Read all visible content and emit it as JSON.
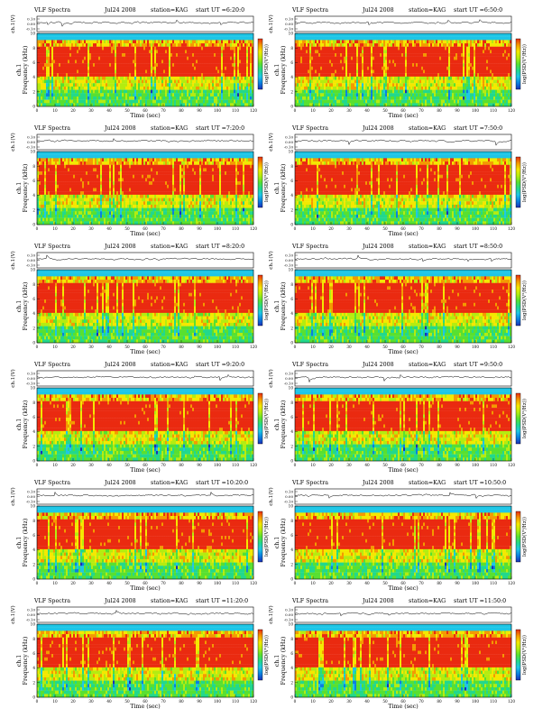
{
  "labels": {
    "spectra": "VLF Spectra",
    "ch1v": "ch.1(V)",
    "freq_ch": "ch.1",
    "freq_units": "Frequency (kHz)",
    "time": "Time (sec)",
    "cbar": "log(PSD(V²/Hz))"
  },
  "colors": {
    "colormap": [
      "#1b2fb8",
      "#0a7fe0",
      "#1ec6e6",
      "#22d88c",
      "#58e030",
      "#b4ec10",
      "#f4e800",
      "#f49a00",
      "#ea2a10"
    ],
    "frame": "#000000",
    "waveform": "#000000"
  },
  "chart_data": [
    {
      "type": "heatmap",
      "date": "Jul24 2008",
      "station": "station=KAG",
      "start": "start UT =6:20:0",
      "waveform_ticks": [
        "0.10",
        "0.00",
        "-0.10"
      ],
      "y_ticks": [
        "0",
        "2",
        "4",
        "6",
        "8",
        "10"
      ],
      "x_ticks": [
        "0",
        "10",
        "20",
        "30",
        "40",
        "50",
        "60",
        "70",
        "80",
        "90",
        "100",
        "110",
        "120"
      ],
      "xlim": [
        0,
        120
      ],
      "ylim": [
        0,
        10
      ]
    },
    {
      "type": "heatmap",
      "date": "Jul24 2008",
      "station": "station=KAG",
      "start": "start UT =6:50:0",
      "waveform_ticks": [
        "0.10",
        "0.00",
        "-0.10"
      ],
      "y_ticks": [
        "0",
        "2",
        "4",
        "6",
        "8",
        "10"
      ],
      "x_ticks": [
        "0",
        "10",
        "20",
        "30",
        "40",
        "50",
        "60",
        "70",
        "80",
        "90",
        "100",
        "110",
        "120"
      ],
      "xlim": [
        0,
        120
      ],
      "ylim": [
        0,
        10
      ]
    },
    {
      "type": "heatmap",
      "date": "Jul24 2008",
      "station": "station=KAG",
      "start": "start UT =7:20:0",
      "waveform_ticks": [
        "0.10",
        "0.00",
        "-0.10"
      ],
      "y_ticks": [
        "0",
        "2",
        "4",
        "6",
        "8",
        "10"
      ],
      "x_ticks": [
        "0",
        "10",
        "20",
        "30",
        "40",
        "50",
        "60",
        "70",
        "80",
        "90",
        "100",
        "110",
        "120"
      ],
      "xlim": [
        0,
        120
      ],
      "ylim": [
        0,
        10
      ]
    },
    {
      "type": "heatmap",
      "date": "Jul24 2008",
      "station": "station=KAG",
      "start": "start UT =7:50:0",
      "waveform_ticks": [
        "0.10",
        "0.00",
        "-0.10"
      ],
      "y_ticks": [
        "0",
        "2",
        "4",
        "6",
        "8",
        "10"
      ],
      "x_ticks": [
        "0",
        "10",
        "20",
        "30",
        "40",
        "50",
        "60",
        "70",
        "80",
        "90",
        "100",
        "110",
        "120"
      ],
      "xlim": [
        0,
        120
      ],
      "ylim": [
        0,
        10
      ]
    },
    {
      "type": "heatmap",
      "date": "Jul24 2008",
      "station": "station=KAG",
      "start": "start UT =8:20:0",
      "waveform_ticks": [
        "0.10",
        "0.00",
        "-0.10"
      ],
      "y_ticks": [
        "0",
        "2",
        "4",
        "6",
        "8",
        "10"
      ],
      "x_ticks": [
        "0",
        "10",
        "20",
        "30",
        "40",
        "50",
        "60",
        "70",
        "80",
        "90",
        "100",
        "110",
        "120"
      ],
      "xlim": [
        0,
        120
      ],
      "ylim": [
        0,
        10
      ]
    },
    {
      "type": "heatmap",
      "date": "Jul24 2008",
      "station": "station=KAG",
      "start": "start UT =8:50:0",
      "waveform_ticks": [
        "0.10",
        "0.00",
        "-0.10"
      ],
      "y_ticks": [
        "0",
        "2",
        "4",
        "6",
        "8",
        "10"
      ],
      "x_ticks": [
        "0",
        "10",
        "20",
        "30",
        "40",
        "50",
        "60",
        "70",
        "80",
        "90",
        "100",
        "110",
        "120"
      ],
      "xlim": [
        0,
        120
      ],
      "ylim": [
        0,
        10
      ]
    },
    {
      "type": "heatmap",
      "date": "Jul24 2008",
      "station": "station=KAG",
      "start": "start UT =9:20:0",
      "waveform_ticks": [
        "0.10",
        "0.00",
        "-0.10"
      ],
      "y_ticks": [
        "0",
        "2",
        "4",
        "6",
        "8",
        "10"
      ],
      "x_ticks": [
        "0",
        "10",
        "20",
        "30",
        "40",
        "50",
        "60",
        "70",
        "80",
        "90",
        "100",
        "110",
        "120"
      ],
      "xlim": [
        0,
        120
      ],
      "ylim": [
        0,
        10
      ]
    },
    {
      "type": "heatmap",
      "date": "Jul24 2008",
      "station": "station=KAG",
      "start": "start UT =9:50:0",
      "waveform_ticks": [
        "0.10",
        "0.00",
        "-0.10"
      ],
      "y_ticks": [
        "0",
        "2",
        "4",
        "6",
        "8",
        "10"
      ],
      "x_ticks": [
        "0",
        "10",
        "20",
        "30",
        "40",
        "50",
        "60",
        "70",
        "80",
        "90",
        "100",
        "110",
        "120"
      ],
      "xlim": [
        0,
        120
      ],
      "ylim": [
        0,
        10
      ]
    },
    {
      "type": "heatmap",
      "date": "Jul24 2008",
      "station": "station=KAG",
      "start": "start UT =10:20:0",
      "waveform_ticks": [
        "0.10",
        "0.00",
        "-0.10"
      ],
      "y_ticks": [
        "0",
        "2",
        "4",
        "6",
        "8",
        "10"
      ],
      "x_ticks": [
        "0",
        "10",
        "20",
        "30",
        "40",
        "50",
        "60",
        "70",
        "80",
        "90",
        "100",
        "110",
        "120"
      ],
      "xlim": [
        0,
        120
      ],
      "ylim": [
        0,
        10
      ]
    },
    {
      "type": "heatmap",
      "date": "Jul24 2008",
      "station": "station=KAG",
      "start": "start UT =10:50:0",
      "waveform_ticks": [
        "0.10",
        "0.00",
        "-0.10"
      ],
      "y_ticks": [
        "0",
        "2",
        "4",
        "6",
        "8",
        "10"
      ],
      "x_ticks": [
        "0",
        "10",
        "20",
        "30",
        "40",
        "50",
        "60",
        "70",
        "80",
        "90",
        "100",
        "110",
        "120"
      ],
      "xlim": [
        0,
        120
      ],
      "ylim": [
        0,
        10
      ]
    },
    {
      "type": "heatmap",
      "date": "Jul24 2008",
      "station": "station=KAG",
      "start": "start UT =11:20:0",
      "waveform_ticks": [
        "0.10",
        "0.00",
        "-0.10"
      ],
      "y_ticks": [
        "0",
        "2",
        "4",
        "6",
        "8",
        "10"
      ],
      "x_ticks": [
        "0",
        "10",
        "20",
        "30",
        "40",
        "50",
        "60",
        "70",
        "80",
        "90",
        "100",
        "110",
        "120"
      ],
      "xlim": [
        0,
        120
      ],
      "ylim": [
        0,
        10
      ]
    },
    {
      "type": "heatmap",
      "date": "Jul24 2008",
      "station": "station=KAG",
      "start": "start UT =11:50:0",
      "waveform_ticks": [
        "0.10",
        "0.00",
        "-0.10"
      ],
      "y_ticks": [
        "0",
        "2",
        "4",
        "6",
        "8",
        "10"
      ],
      "x_ticks": [
        "0",
        "10",
        "20",
        "30",
        "40",
        "50",
        "60",
        "70",
        "80",
        "90",
        "100",
        "110",
        "120"
      ],
      "xlim": [
        0,
        120
      ],
      "ylim": [
        0,
        10
      ]
    }
  ]
}
